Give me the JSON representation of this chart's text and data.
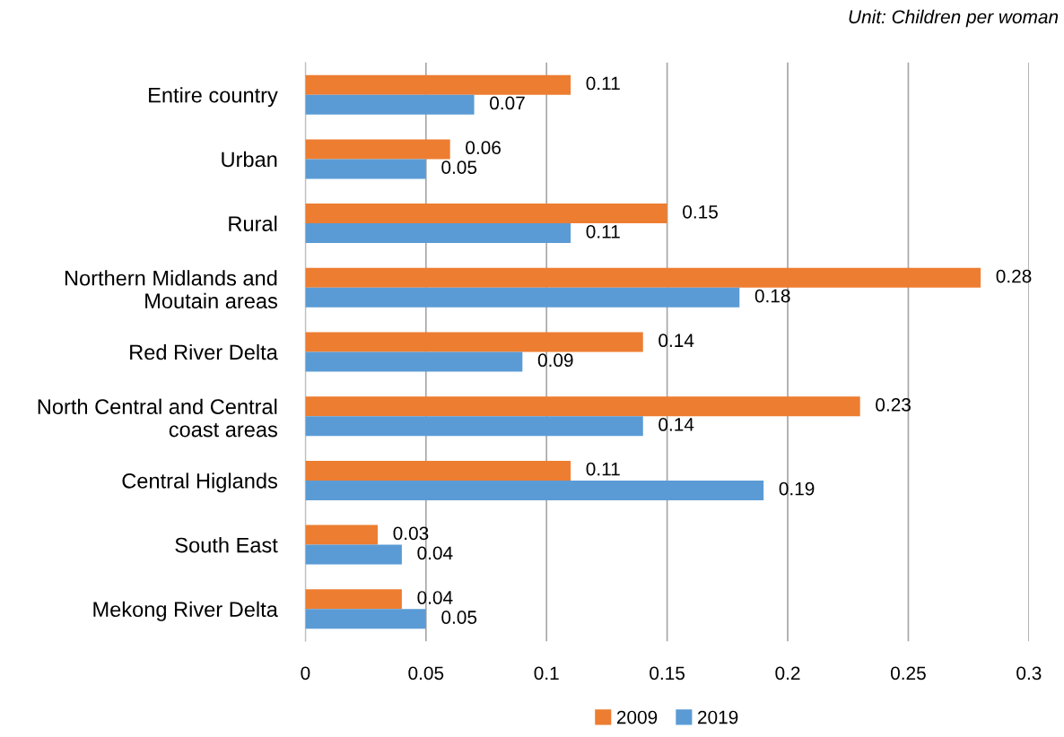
{
  "chart_data": {
    "type": "bar",
    "orientation": "horizontal",
    "categories": [
      "Entire country",
      "Urban",
      "Rural",
      "Northern Midlands and\nMoutain areas",
      "Red River Delta",
      "North Central and Central\ncoast areas",
      "Central Higlands",
      "South East",
      "Mekong River Delta"
    ],
    "series": [
      {
        "name": "2009",
        "color": "#ed7d31",
        "values": [
          0.11,
          0.06,
          0.15,
          0.28,
          0.14,
          0.23,
          0.11,
          0.03,
          0.04
        ]
      },
      {
        "name": "2019",
        "color": "#5b9bd5",
        "values": [
          0.07,
          0.05,
          0.11,
          0.18,
          0.09,
          0.14,
          0.19,
          0.04,
          0.05
        ]
      }
    ],
    "xlim": [
      0,
      0.3
    ],
    "xticks": [
      0,
      0.05,
      0.1,
      0.15,
      0.2,
      0.25,
      0.3
    ],
    "grid": "x",
    "legend": "bottom",
    "data_labels": true,
    "annotations": [
      "Unit: Children per woman"
    ]
  }
}
